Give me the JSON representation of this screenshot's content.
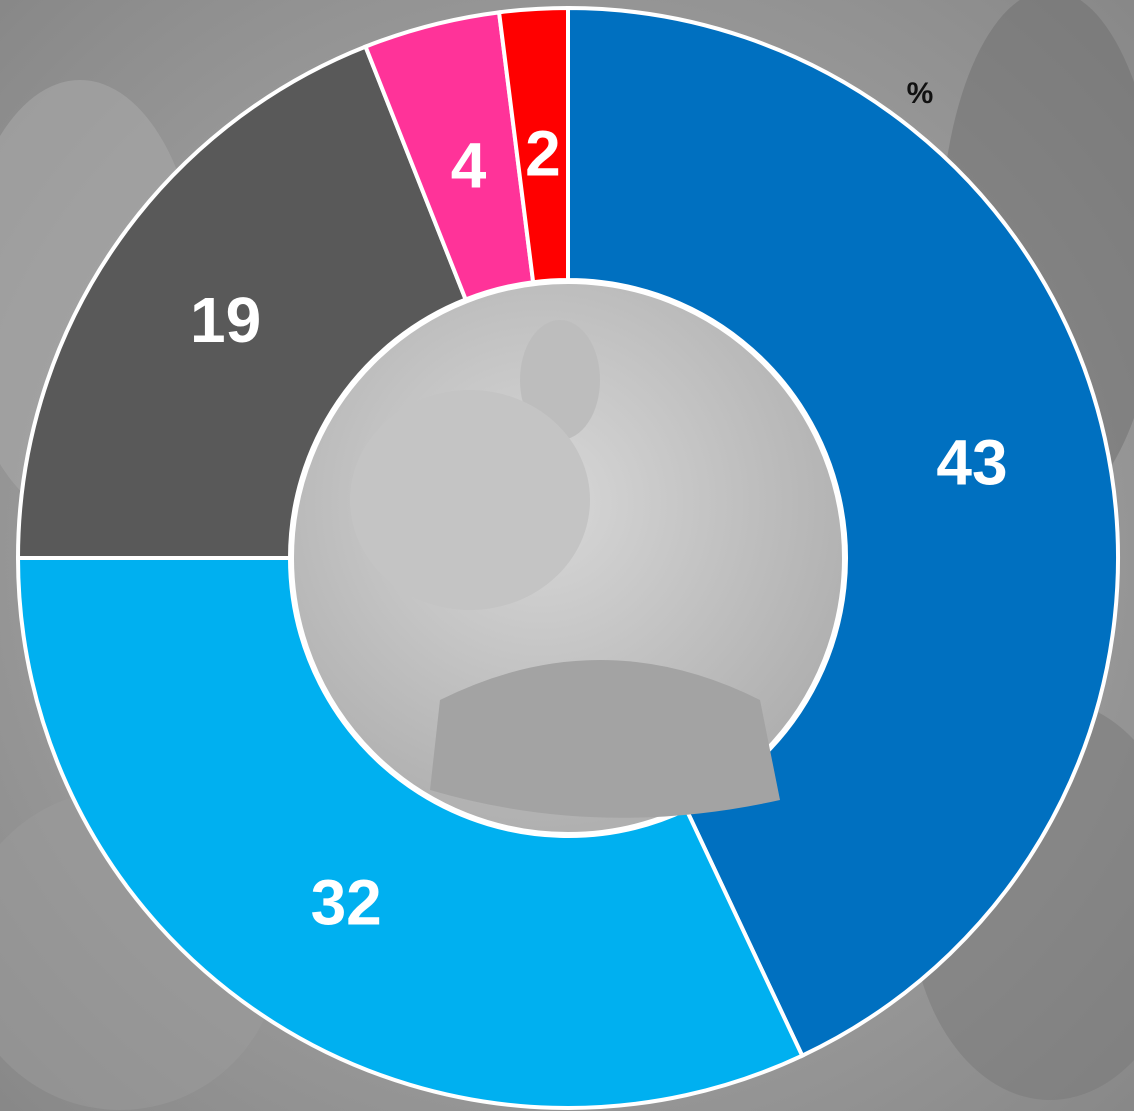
{
  "chart_data": {
    "type": "donut",
    "unit": "%",
    "values": [
      43,
      32,
      19,
      4,
      2
    ],
    "colors": [
      "#0070c0",
      "#00b0f0",
      "#595959",
      "#ff3399",
      "#ff0000"
    ],
    "start": "top",
    "direction": "clockwise"
  }
}
